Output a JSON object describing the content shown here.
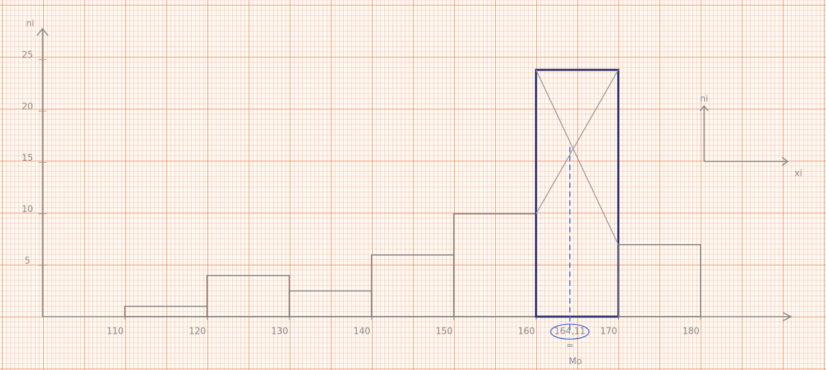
{
  "chart_data": {
    "type": "histogram",
    "y_label": "ni",
    "bins": [
      110,
      120,
      130,
      140,
      150,
      160,
      170,
      180
    ],
    "counts": [
      1,
      4,
      2.5,
      6,
      10,
      24,
      7
    ],
    "color": "#7a7a7a",
    "highlight_color": "#2b2f6e",
    "xlim": [
      100,
      191
    ],
    "ylim": [
      0,
      28
    ],
    "xticks": [
      110,
      120,
      130,
      140,
      150,
      160,
      170,
      180
    ],
    "yticks": [
      5,
      10,
      15,
      20,
      25
    ],
    "mode": {
      "value": 164.11,
      "label": "164,11"
    },
    "mode_name": "Mo",
    "mode_equals": "=",
    "inset_y_label": "ni",
    "inset_x_label": "xi"
  }
}
